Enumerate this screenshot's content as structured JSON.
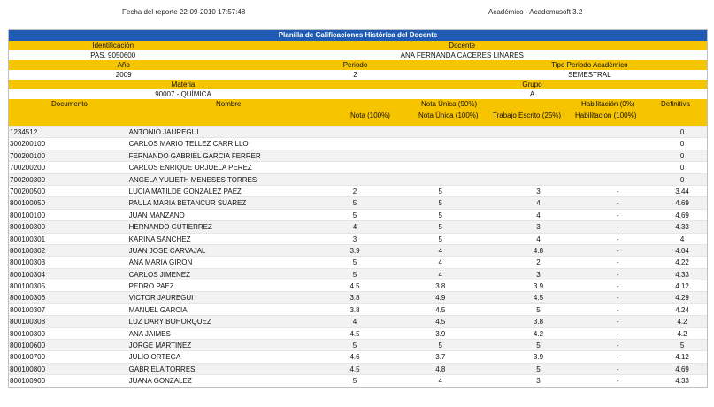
{
  "header": {
    "report_date": "Fecha del reporte 22-09-2010 17:57:48",
    "app_version": "Académico - Academusoft 3.2"
  },
  "sheet": {
    "title": "Planilla de Calificaciones Histórica del Docente",
    "identificacion_label": "Identificación",
    "identificacion_value": "PAS. 9050600",
    "docente_label": "Docente",
    "docente_value": "ANA FERNANDA CACERES LINARES",
    "anio_label": "Año",
    "anio_value": "2009",
    "periodo_label": "Periodo",
    "periodo_value": "2",
    "tipo_periodo_label": "Tipo Periodo Académico",
    "tipo_periodo_value": "SEMESTRAL",
    "materia_label": "Materia",
    "materia_value": "90007 - QUÍMICA",
    "grupo_label": "Grupo",
    "grupo_value": "A"
  },
  "columns": {
    "documento": "Documento",
    "nombre": "Nombre",
    "nota_unica_90": "Nota Única (90%)",
    "habilitacion_0": "Habilitación (0%)",
    "definitiva": "Definitiva",
    "nota_100": "Nota (100%)",
    "nota_unica_100": "Nota Única (100%)",
    "trabajo_escrito": "Trabajo Escrito (25%)",
    "habilitacion_100": "Habilitacion (100%)"
  },
  "students": [
    {
      "doc": "1234512",
      "name": "ANTONIO JAUREGUI",
      "n100": "",
      "nu": "",
      "te": "",
      "hab": "",
      "def": "0"
    },
    {
      "doc": "300200100",
      "name": "CARLOS MARIO TELLEZ CARRILLO",
      "n100": "",
      "nu": "",
      "te": "",
      "hab": "",
      "def": "0"
    },
    {
      "doc": "700200100",
      "name": "FERNANDO GABRIEL GARCIA FERRER",
      "n100": "",
      "nu": "",
      "te": "",
      "hab": "",
      "def": "0"
    },
    {
      "doc": "700200200",
      "name": "CARLOS ENRIQUE ORJUELA PEREZ",
      "n100": "",
      "nu": "",
      "te": "",
      "hab": "",
      "def": "0"
    },
    {
      "doc": "700200300",
      "name": "ANGELA YULIETH MENESES TORRES",
      "n100": "",
      "nu": "",
      "te": "",
      "hab": "",
      "def": "0"
    },
    {
      "doc": "700200500",
      "name": "LUCIA MATILDE GONZALEZ PAEZ",
      "n100": "2",
      "nu": "5",
      "te": "3",
      "hab": "-",
      "def": "3.44"
    },
    {
      "doc": "800100050",
      "name": "PAULA MARIA BETANCUR SUAREZ",
      "n100": "5",
      "nu": "5",
      "te": "4",
      "hab": "-",
      "def": "4.69"
    },
    {
      "doc": "800100100",
      "name": "JUAN MANZANO",
      "n100": "5",
      "nu": "5",
      "te": "4",
      "hab": "-",
      "def": "4.69"
    },
    {
      "doc": "800100300",
      "name": "HERNANDO GUTIERREZ",
      "n100": "4",
      "nu": "5",
      "te": "3",
      "hab": "-",
      "def": "4.33"
    },
    {
      "doc": "800100301",
      "name": "KARINA SANCHEZ",
      "n100": "3",
      "nu": "5",
      "te": "4",
      "hab": "-",
      "def": "4"
    },
    {
      "doc": "800100302",
      "name": "JUAN JOSE CARVAJAL",
      "n100": "3.9",
      "nu": "4",
      "te": "4.8",
      "hab": "-",
      "def": "4.04"
    },
    {
      "doc": "800100303",
      "name": "ANA MARIA GIRON",
      "n100": "5",
      "nu": "4",
      "te": "2",
      "hab": "-",
      "def": "4.22"
    },
    {
      "doc": "800100304",
      "name": "CARLOS JIMENEZ",
      "n100": "5",
      "nu": "4",
      "te": "3",
      "hab": "-",
      "def": "4.33"
    },
    {
      "doc": "800100305",
      "name": "PEDRO PAEZ",
      "n100": "4.5",
      "nu": "3.8",
      "te": "3.9",
      "hab": "-",
      "def": "4.12"
    },
    {
      "doc": "800100306",
      "name": "VICTOR JAUREGUI",
      "n100": "3.8",
      "nu": "4.9",
      "te": "4.5",
      "hab": "-",
      "def": "4.29"
    },
    {
      "doc": "800100307",
      "name": "MANUEL GARCIA",
      "n100": "3.8",
      "nu": "4.5",
      "te": "5",
      "hab": "-",
      "def": "4.24"
    },
    {
      "doc": "800100308",
      "name": "LUZ DARY BOHORQUEZ",
      "n100": "4",
      "nu": "4.5",
      "te": "3.8",
      "hab": "-",
      "def": "4.2"
    },
    {
      "doc": "800100309",
      "name": "ANA JAIMES",
      "n100": "4.5",
      "nu": "3.9",
      "te": "4.2",
      "hab": "-",
      "def": "4.2"
    },
    {
      "doc": "800100600",
      "name": "JORGE MARTINEZ",
      "n100": "5",
      "nu": "5",
      "te": "5",
      "hab": "-",
      "def": "5"
    },
    {
      "doc": "800100700",
      "name": "JULIO ORTEGA",
      "n100": "4.6",
      "nu": "3.7",
      "te": "3.9",
      "hab": "-",
      "def": "4.12"
    },
    {
      "doc": "800100800",
      "name": "GABRIELA TORRES",
      "n100": "4.5",
      "nu": "4.8",
      "te": "5",
      "hab": "-",
      "def": "4.69"
    },
    {
      "doc": "800100900",
      "name": "JUANA GONZALEZ",
      "n100": "5",
      "nu": "4",
      "te": "3",
      "hab": "-",
      "def": "4.33"
    }
  ]
}
